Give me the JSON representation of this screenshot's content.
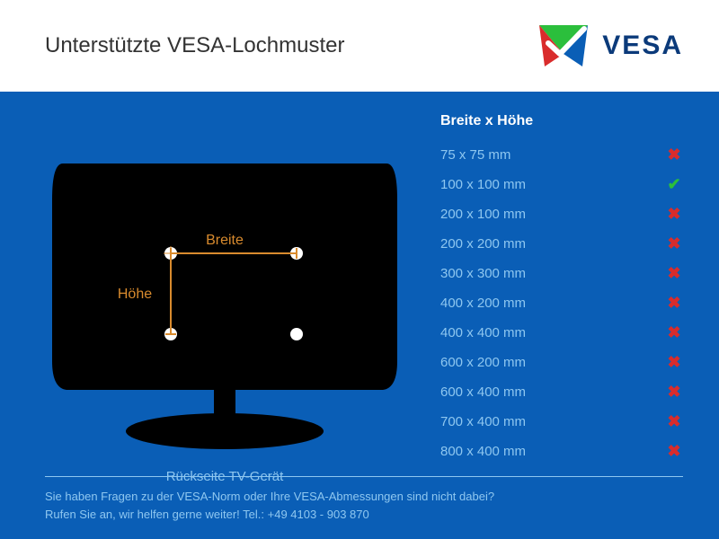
{
  "header": {
    "title": "Unterstützte VESA-Lochmuster",
    "logo_text": "VESA",
    "logo_colors": {
      "top": "#2bbf3c",
      "left": "#d92c2c",
      "right": "#0a5eb6"
    }
  },
  "main": {
    "background": "#0a5eb6",
    "diagram": {
      "caption": "Rückseite TV-Gerät",
      "width_label": "Breite",
      "height_label": "Höhe",
      "tv_fill": "#000000",
      "accent": "#d98b2e",
      "dot_fill": "#ffffff",
      "caption_color": "#8ec7f0"
    },
    "table": {
      "header": "Breite x Höhe",
      "label_color": "#8ec7f0",
      "yes_color": "#2bbf3c",
      "no_color": "#d92c2c",
      "rows": [
        {
          "label": "75 x 75 mm",
          "supported": false
        },
        {
          "label": "100 x 100 mm",
          "supported": true
        },
        {
          "label": "200 x 100 mm",
          "supported": false
        },
        {
          "label": "200 x 200 mm",
          "supported": false
        },
        {
          "label": "300 x 300 mm",
          "supported": false
        },
        {
          "label": "400 x 200 mm",
          "supported": false
        },
        {
          "label": "400 x 400 mm",
          "supported": false
        },
        {
          "label": "600 x 200 mm",
          "supported": false
        },
        {
          "label": "600 x 400 mm",
          "supported": false
        },
        {
          "label": "700 x 400 mm",
          "supported": false
        },
        {
          "label": "800 x 400 mm",
          "supported": false
        }
      ]
    }
  },
  "footer": {
    "line1": "Sie haben Fragen zu der VESA-Norm oder Ihre VESA-Abmessungen sind nicht dabei?",
    "line2": "Rufen Sie an, wir helfen gerne weiter! Tel.: +49 4103 - 903 870",
    "divider_color": "#8ec7f0",
    "text_color": "#8ec7f0"
  }
}
